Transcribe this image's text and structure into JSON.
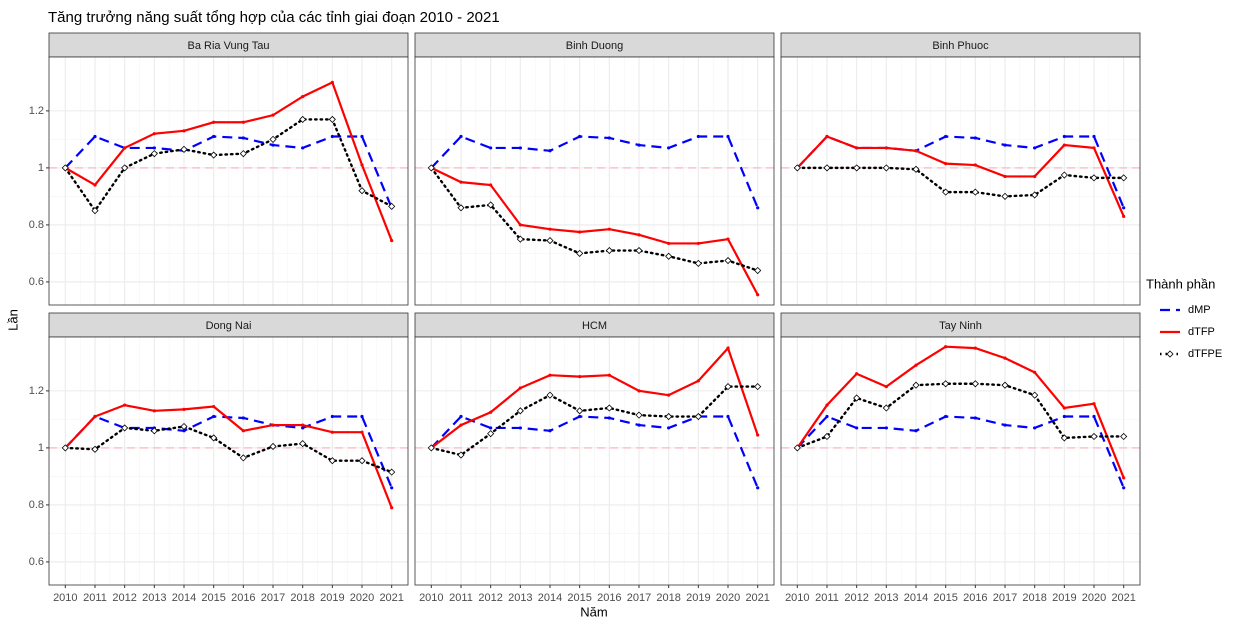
{
  "chart_data": {
    "type": "line",
    "title": "Tăng trưởng năng suất tổng hợp của các tỉnh giai đoạn 2010 - 2021",
    "x_label": "Năm",
    "y_label": "Lần",
    "legend_title": "Thành phần",
    "x": [
      2010,
      2011,
      2012,
      2013,
      2014,
      2015,
      2016,
      2017,
      2018,
      2019,
      2020,
      2021
    ],
    "xlim": [
      2009.45,
      2021.55
    ],
    "xticks": [
      2010,
      2011,
      2012,
      2013,
      2014,
      2015,
      2016,
      2017,
      2018,
      2019,
      2020,
      2021
    ],
    "ylim": [
      0.519,
      1.389
    ],
    "yticks": [
      0.6,
      0.8,
      1.0,
      1.2
    ],
    "grid": true,
    "reference_line": 1.0,
    "reference_color": "#ffc0cb",
    "panels": [
      {
        "name": "Ba Ria Vung Tau",
        "series": [
          {
            "name": "dMP",
            "color": "#0000ff",
            "style": "dashed",
            "values": [
              1.0,
              1.11,
              1.07,
              1.07,
              1.06,
              1.11,
              1.105,
              1.08,
              1.07,
              1.11,
              1.11,
              0.86
            ]
          },
          {
            "name": "dTFP",
            "color": "#ff0000",
            "style": "solid",
            "values": [
              1.0,
              0.94,
              1.07,
              1.12,
              1.13,
              1.16,
              1.16,
              1.185,
              1.25,
              1.3,
              1.01,
              0.745
            ]
          },
          {
            "name": "dTFPE",
            "color": "#000000",
            "style": "dotted",
            "values": [
              1.0,
              0.85,
              1.0,
              1.05,
              1.065,
              1.045,
              1.05,
              1.1,
              1.17,
              1.17,
              0.92,
              0.865
            ]
          }
        ]
      },
      {
        "name": "Binh Duong",
        "series": [
          {
            "name": "dMP",
            "color": "#0000ff",
            "style": "dashed",
            "values": [
              1.0,
              1.11,
              1.07,
              1.07,
              1.06,
              1.11,
              1.105,
              1.08,
              1.07,
              1.11,
              1.11,
              0.86
            ]
          },
          {
            "name": "dTFP",
            "color": "#ff0000",
            "style": "solid",
            "values": [
              1.0,
              0.95,
              0.94,
              0.8,
              0.785,
              0.775,
              0.785,
              0.765,
              0.735,
              0.735,
              0.75,
              0.555
            ]
          },
          {
            "name": "dTFPE",
            "color": "#000000",
            "style": "dotted",
            "values": [
              1.0,
              0.86,
              0.87,
              0.75,
              0.745,
              0.7,
              0.71,
              0.71,
              0.69,
              0.665,
              0.675,
              0.64
            ]
          }
        ]
      },
      {
        "name": "Binh Phuoc",
        "series": [
          {
            "name": "dMP",
            "color": "#0000ff",
            "style": "dashed",
            "values": [
              1.0,
              1.11,
              1.07,
              1.07,
              1.06,
              1.11,
              1.105,
              1.08,
              1.07,
              1.11,
              1.11,
              0.86
            ]
          },
          {
            "name": "dTFP",
            "color": "#ff0000",
            "style": "solid",
            "values": [
              1.0,
              1.11,
              1.07,
              1.07,
              1.06,
              1.015,
              1.01,
              0.97,
              0.97,
              1.08,
              1.07,
              0.83
            ]
          },
          {
            "name": "dTFPE",
            "color": "#000000",
            "style": "dotted",
            "values": [
              1.0,
              1.0,
              1.0,
              1.0,
              0.995,
              0.915,
              0.915,
              0.9,
              0.905,
              0.975,
              0.965,
              0.965
            ]
          }
        ]
      },
      {
        "name": "Dong Nai",
        "series": [
          {
            "name": "dMP",
            "color": "#0000ff",
            "style": "dashed",
            "values": [
              1.0,
              1.11,
              1.07,
              1.07,
              1.06,
              1.11,
              1.105,
              1.08,
              1.07,
              1.11,
              1.11,
              0.86
            ]
          },
          {
            "name": "dTFP",
            "color": "#ff0000",
            "style": "solid",
            "values": [
              1.0,
              1.11,
              1.15,
              1.13,
              1.135,
              1.145,
              1.06,
              1.08,
              1.08,
              1.055,
              1.055,
              0.79
            ]
          },
          {
            "name": "dTFPE",
            "color": "#000000",
            "style": "dotted",
            "values": [
              1.0,
              0.995,
              1.07,
              1.06,
              1.075,
              1.035,
              0.965,
              1.005,
              1.015,
              0.955,
              0.955,
              0.915
            ]
          }
        ]
      },
      {
        "name": "HCM",
        "series": [
          {
            "name": "dMP",
            "color": "#0000ff",
            "style": "dashed",
            "values": [
              1.0,
              1.11,
              1.07,
              1.07,
              1.06,
              1.11,
              1.105,
              1.08,
              1.07,
              1.11,
              1.11,
              0.86
            ]
          },
          {
            "name": "dTFP",
            "color": "#ff0000",
            "style": "solid",
            "values": [
              1.0,
              1.08,
              1.125,
              1.21,
              1.255,
              1.25,
              1.255,
              1.2,
              1.185,
              1.235,
              1.35,
              1.045
            ]
          },
          {
            "name": "dTFPE",
            "color": "#000000",
            "style": "dotted",
            "values": [
              1.0,
              0.975,
              1.05,
              1.13,
              1.185,
              1.13,
              1.14,
              1.115,
              1.11,
              1.11,
              1.215,
              1.215
            ]
          }
        ]
      },
      {
        "name": "Tay Ninh",
        "series": [
          {
            "name": "dMP",
            "color": "#0000ff",
            "style": "dashed",
            "values": [
              1.0,
              1.11,
              1.07,
              1.07,
              1.06,
              1.11,
              1.105,
              1.08,
              1.07,
              1.11,
              1.11,
              0.86
            ]
          },
          {
            "name": "dTFP",
            "color": "#ff0000",
            "style": "solid",
            "values": [
              1.0,
              1.15,
              1.26,
              1.215,
              1.29,
              1.355,
              1.35,
              1.315,
              1.265,
              1.14,
              1.155,
              0.895
            ]
          },
          {
            "name": "dTFPE",
            "color": "#000000",
            "style": "dotted",
            "values": [
              1.0,
              1.04,
              1.175,
              1.14,
              1.22,
              1.225,
              1.225,
              1.22,
              1.185,
              1.035,
              1.04,
              1.04
            ]
          }
        ]
      }
    ]
  }
}
